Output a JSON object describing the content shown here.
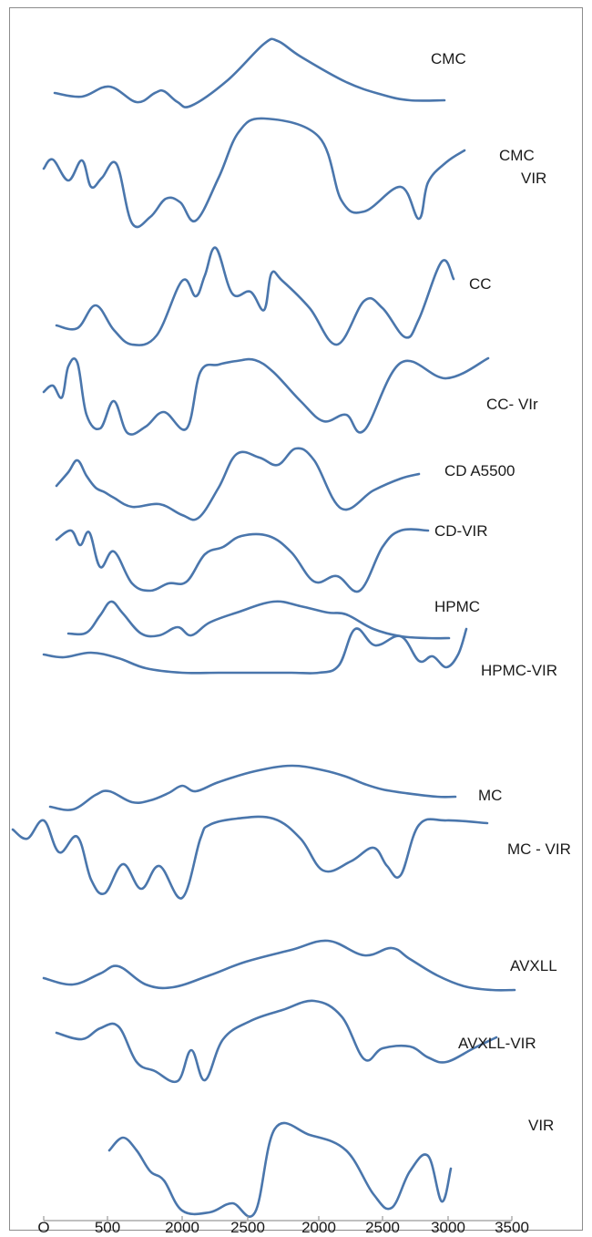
{
  "chart_data": {
    "type": "line",
    "title": "",
    "xlabel": "",
    "ylabel": "",
    "x_ticks": [
      "O",
      "500",
      "2000",
      "2500",
      "2000",
      "2500",
      "3000",
      "3500"
    ],
    "grid": false,
    "legend": "none",
    "color": "#4a76ac",
    "series": [
      {
        "name": "CMC",
        "x": [
          60,
          90,
          120,
          150,
          170,
          180,
          195,
          210,
          250,
          290,
          305,
          330,
          380,
          420,
          450,
          488
        ],
        "y": [
          102,
          106,
          95,
          112,
          102,
          100,
          112,
          116,
          88,
          48,
          45,
          62,
          90,
          104,
          110,
          110
        ]
      },
      {
        "name": "CMC\nVIR",
        "x": [
          48,
          58,
          75,
          90,
          100,
          112,
          128,
          145,
          165,
          182,
          198,
          215,
          240,
          262,
          290,
          350,
          375,
          400,
          440,
          460,
          470,
          490,
          510
        ],
        "y": [
          185,
          175,
          198,
          176,
          205,
          195,
          180,
          245,
          238,
          218,
          222,
          242,
          195,
          145,
          130,
          150,
          220,
          232,
          205,
          240,
          200,
          178,
          165
        ]
      },
      {
        "name": "CC",
        "x": [
          62,
          85,
          105,
          125,
          145,
          172,
          200,
          215,
          225,
          237,
          255,
          275,
          290,
          298,
          310,
          340,
          370,
          400,
          420,
          445,
          460,
          485,
          498
        ],
        "y": [
          357,
          360,
          335,
          362,
          378,
          368,
          308,
          325,
          302,
          272,
          322,
          320,
          340,
          300,
          308,
          338,
          378,
          330,
          338,
          370,
          350,
          287,
          306
        ]
      },
      {
        "name": "CC- VIr",
        "x": [
          48,
          58,
          68,
          75,
          85,
          95,
          110,
          125,
          140,
          160,
          180,
          205,
          220,
          240,
          260,
          280,
          300,
          330,
          355,
          380,
          400,
          440,
          490,
          536
        ],
        "y": [
          430,
          423,
          436,
          402,
          398,
          455,
          470,
          440,
          475,
          468,
          452,
          470,
          408,
          400,
          396,
          395,
          408,
          440,
          462,
          455,
          472,
          398,
          415,
          393
        ]
      },
      {
        "name": "CD A5500",
        "x": [
          62,
          75,
          85,
          95,
          105,
          115,
          125,
          145,
          175,
          200,
          218,
          240,
          260,
          285,
          305,
          325,
          345,
          375,
          410,
          440,
          460
        ],
        "y": [
          533,
          518,
          505,
          522,
          535,
          540,
          546,
          556,
          553,
          565,
          568,
          535,
          498,
          502,
          510,
          492,
          505,
          558,
          538,
          525,
          520
        ]
      },
      {
        "name": "CD-VIR",
        "x": [
          62,
          78,
          88,
          98,
          110,
          125,
          145,
          165,
          185,
          205,
          225,
          245,
          265,
          295,
          320,
          345,
          370,
          395,
          420,
          440,
          470
        ],
        "y": [
          592,
          582,
          598,
          584,
          622,
          605,
          640,
          648,
          640,
          638,
          608,
          600,
          588,
          588,
          606,
          638,
          632,
          648,
          600,
          582,
          582
        ]
      },
      {
        "name": "HPMC",
        "x": [
          75,
          95,
          110,
          122,
          135,
          155,
          175,
          195,
          210,
          230,
          260,
          300,
          330,
          360,
          380,
          410,
          440,
          470,
          493
        ],
        "y": [
          695,
          694,
          675,
          660,
          673,
          695,
          697,
          688,
          697,
          683,
          672,
          660,
          665,
          672,
          674,
          690,
          698,
          700,
          700
        ]
      },
      {
        "name": "HPMC-VIR",
        "x": [
          48,
          70,
          100,
          130,
          160,
          200,
          240,
          280,
          320,
          350,
          372,
          390,
          412,
          440,
          460,
          475,
          490,
          503,
          512
        ],
        "y": [
          718,
          721,
          716,
          722,
          733,
          738,
          738,
          738,
          738,
          738,
          730,
          690,
          708,
          698,
          725,
          720,
          732,
          718,
          690
        ]
      },
      {
        "name": "MC",
        "x": [
          55,
          80,
          105,
          120,
          145,
          165,
          185,
          200,
          215,
          240,
          280,
          320,
          355,
          380,
          400,
          420,
          445,
          480,
          500
        ],
        "y": [
          885,
          888,
          872,
          868,
          880,
          878,
          870,
          862,
          868,
          858,
          846,
          840,
          845,
          852,
          860,
          866,
          870,
          874,
          874
        ]
      },
      {
        "name": "MC - VIR",
        "x": [
          14,
          30,
          48,
          65,
          85,
          100,
          115,
          135,
          155,
          175,
          200,
          220,
          230,
          260,
          300,
          330,
          355,
          385,
          410,
          425,
          440,
          460,
          490,
          535
        ],
        "y": [
          910,
          920,
          900,
          935,
          918,
          965,
          980,
          948,
          975,
          950,
          985,
          920,
          905,
          898,
          898,
          920,
          955,
          945,
          930,
          950,
          960,
          905,
          900,
          903
        ]
      },
      {
        "name": "AVXLL",
        "x": [
          48,
          80,
          110,
          130,
          160,
          190,
          230,
          270,
          320,
          360,
          400,
          430,
          450,
          480,
          510,
          540,
          565
        ],
        "y": [
          1073,
          1080,
          1068,
          1060,
          1080,
          1083,
          1070,
          1055,
          1042,
          1032,
          1048,
          1040,
          1052,
          1070,
          1082,
          1086,
          1086
        ]
      },
      {
        "name": "AVXLL-VIR",
        "x": [
          62,
          90,
          110,
          130,
          150,
          170,
          195,
          210,
          225,
          245,
          275,
          310,
          345,
          375,
          400,
          420,
          450,
          470,
          490,
          520,
          545
        ],
        "y": [
          1133,
          1140,
          1128,
          1126,
          1165,
          1175,
          1186,
          1152,
          1185,
          1140,
          1120,
          1108,
          1098,
          1115,
          1162,
          1150,
          1148,
          1160,
          1165,
          1150,
          1138
        ]
      },
      {
        "name": "VIR",
        "x": [
          120,
          135,
          150,
          165,
          180,
          200,
          230,
          255,
          280,
          302,
          340,
          380,
          410,
          430,
          450,
          470,
          485,
          495
        ],
        "y": [
          1262,
          1248,
          1262,
          1285,
          1295,
          1328,
          1330,
          1320,
          1330,
          1238,
          1245,
          1262,
          1310,
          1325,
          1285,
          1268,
          1318,
          1282
        ]
      }
    ]
  }
}
